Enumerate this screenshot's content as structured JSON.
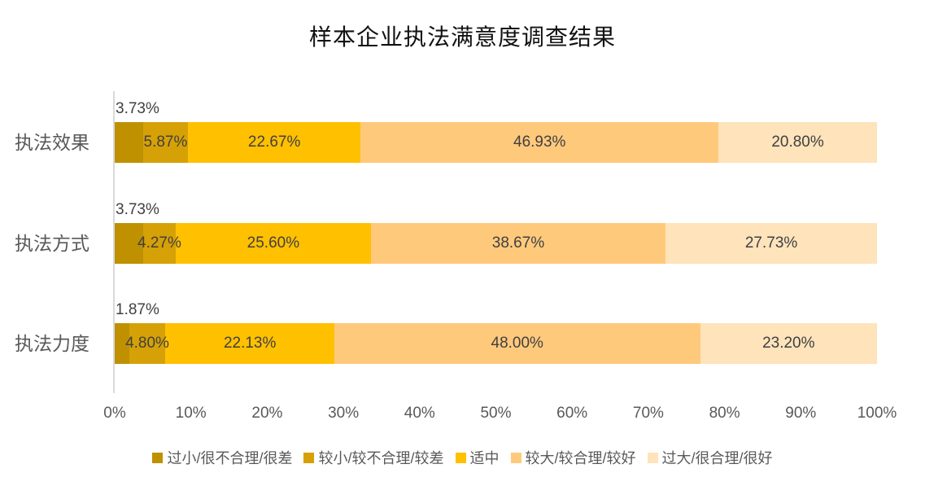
{
  "title": "样本企业执法满意度调查结果",
  "chart_data": {
    "type": "bar",
    "orientation": "horizontal",
    "stacked": true,
    "stacked_total": 100,
    "title": "样本企业执法满意度调查结果",
    "categories": [
      "执法效果",
      "执法方式",
      "执法力度"
    ],
    "series": [
      {
        "name": "过小/很不合理/很差",
        "color": "#BF9000",
        "values": [
          3.73,
          3.73,
          1.87
        ]
      },
      {
        "name": "较小/较不合理/较差",
        "color": "#D6A106",
        "values": [
          5.87,
          4.27,
          4.8
        ]
      },
      {
        "name": "适中",
        "color": "#FFC000",
        "values": [
          22.67,
          25.6,
          22.13
        ]
      },
      {
        "name": "较大/较合理/较好",
        "color": "#FFC97C",
        "values": [
          46.93,
          38.67,
          48.0
        ]
      },
      {
        "name": "过大/很合理/很好",
        "color": "#FEE3BB",
        "values": [
          20.8,
          27.73,
          23.2
        ]
      }
    ],
    "data_labels": [
      [
        "3.73%",
        "5.87%",
        "22.67%",
        "46.93%",
        "20.80%"
      ],
      [
        "3.73%",
        "4.27%",
        "25.60%",
        "38.67%",
        "27.73%"
      ],
      [
        "1.87%",
        "4.80%",
        "22.13%",
        "48.00%",
        "23.20%"
      ]
    ],
    "first_segment_label_position": "above-bar-left",
    "x_ticks": [
      "0%",
      "10%",
      "20%",
      "30%",
      "40%",
      "50%",
      "60%",
      "70%",
      "80%",
      "90%",
      "100%"
    ],
    "xlim": [
      0,
      100
    ],
    "grid": false,
    "legend_position": "bottom",
    "axis_text_color": "#595959",
    "data_label_color": "#404040",
    "axis_line_color": "#D9D9D9"
  }
}
